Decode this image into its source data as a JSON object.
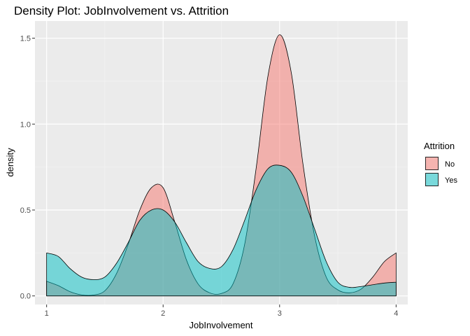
{
  "chart_data": {
    "type": "area",
    "subtype": "density",
    "title": "Density Plot: JobInvolvement vs. Attrition",
    "xlabel": "JobInvolvement",
    "ylabel": "density",
    "xlim": [
      0.9,
      4.1
    ],
    "ylim": [
      -0.05,
      1.6
    ],
    "x_ticks": [
      1,
      2,
      3,
      4
    ],
    "y_ticks": [
      0.0,
      0.5,
      1.0,
      1.5
    ],
    "y_tick_labels": [
      "0.0",
      "0.5",
      "1.0",
      "1.5"
    ],
    "grid": true,
    "legend": {
      "title": "Attrition",
      "position": "right"
    },
    "series": [
      {
        "name": "No",
        "fill": "#F8766D",
        "x": [
          1.0,
          1.1,
          1.2,
          1.3,
          1.4,
          1.5,
          1.6,
          1.7,
          1.8,
          1.9,
          2.0,
          2.1,
          2.2,
          2.3,
          2.4,
          2.5,
          2.6,
          2.7,
          2.8,
          2.9,
          3.0,
          3.1,
          3.2,
          3.3,
          3.4,
          3.5,
          3.6,
          3.7,
          3.8,
          3.9,
          4.0
        ],
        "values": [
          0.085,
          0.06,
          0.025,
          0.006,
          0.005,
          0.03,
          0.13,
          0.3,
          0.5,
          0.63,
          0.63,
          0.43,
          0.21,
          0.07,
          0.018,
          0.014,
          0.07,
          0.3,
          0.75,
          1.28,
          1.52,
          1.3,
          0.77,
          0.35,
          0.11,
          0.035,
          0.018,
          0.04,
          0.11,
          0.2,
          0.25
        ]
      },
      {
        "name": "Yes",
        "fill": "#00BFC4",
        "x": [
          1.0,
          1.1,
          1.2,
          1.3,
          1.4,
          1.5,
          1.6,
          1.7,
          1.8,
          1.9,
          2.0,
          2.1,
          2.2,
          2.3,
          2.4,
          2.5,
          2.6,
          2.7,
          2.8,
          2.9,
          3.0,
          3.1,
          3.2,
          3.3,
          3.4,
          3.5,
          3.6,
          3.7,
          3.8,
          3.9,
          4.0
        ],
        "values": [
          0.25,
          0.23,
          0.16,
          0.11,
          0.095,
          0.11,
          0.19,
          0.31,
          0.44,
          0.5,
          0.5,
          0.43,
          0.31,
          0.2,
          0.16,
          0.17,
          0.27,
          0.44,
          0.62,
          0.74,
          0.76,
          0.72,
          0.58,
          0.39,
          0.2,
          0.08,
          0.05,
          0.055,
          0.065,
          0.075,
          0.08
        ]
      }
    ]
  }
}
